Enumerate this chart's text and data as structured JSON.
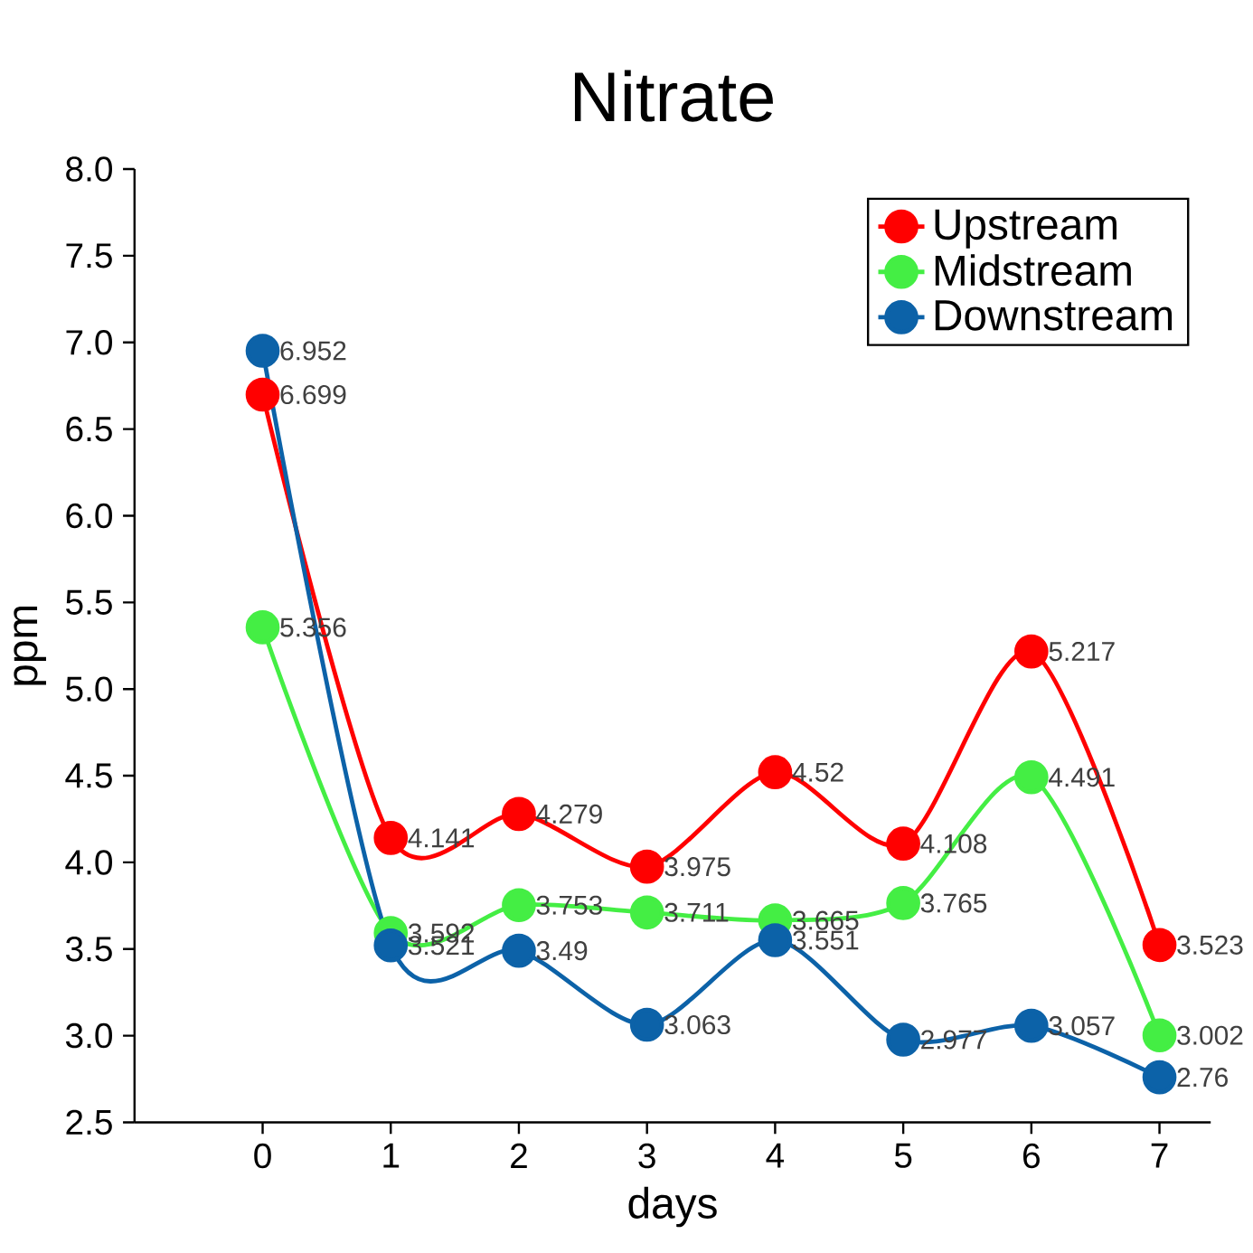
{
  "chart_data": {
    "type": "line",
    "title": "Nitrate",
    "xlabel": "days",
    "ylabel": "ppm",
    "x": [
      0,
      1,
      2,
      3,
      4,
      5,
      6,
      7
    ],
    "series": [
      {
        "name": "Upstream",
        "color": "#ff0000",
        "values": [
          6.699,
          4.141,
          4.279,
          3.975,
          4.52,
          4.108,
          5.217,
          3.523
        ]
      },
      {
        "name": "Midstream",
        "color": "#44ee44",
        "values": [
          5.356,
          3.592,
          3.753,
          3.711,
          3.665,
          3.765,
          4.491,
          3.002
        ]
      },
      {
        "name": "Downstream",
        "color": "#0c62a8",
        "values": [
          6.952,
          3.521,
          3.49,
          3.063,
          3.551,
          2.977,
          3.057,
          2.76
        ]
      }
    ],
    "xlim": [
      -1,
      7.4
    ],
    "xticks": [
      0,
      1,
      2,
      3,
      4,
      5,
      6,
      7
    ],
    "ylim": [
      2.5,
      8.0
    ],
    "yticks": [
      {
        "value": 2.5,
        "label": "2.5"
      },
      {
        "value": 3,
        "label": "3.0"
      },
      {
        "value": 3.5,
        "label": "3.5"
      },
      {
        "value": 4,
        "label": "4.0"
      },
      {
        "value": 4.5,
        "label": "4.5"
      },
      {
        "value": 5,
        "label": "5.0"
      },
      {
        "value": 5.5,
        "label": "5.5"
      },
      {
        "value": 6,
        "label": "6.0"
      },
      {
        "value": 6.5,
        "label": "6.5"
      },
      {
        "value": 7,
        "label": "7.0"
      },
      {
        "value": 7.5,
        "label": "7.5"
      },
      {
        "value": 8,
        "label": "8.0"
      }
    ],
    "data_labels": true,
    "marker": "circle",
    "line_style": "solid",
    "legend": "top right",
    "grid": false
  }
}
